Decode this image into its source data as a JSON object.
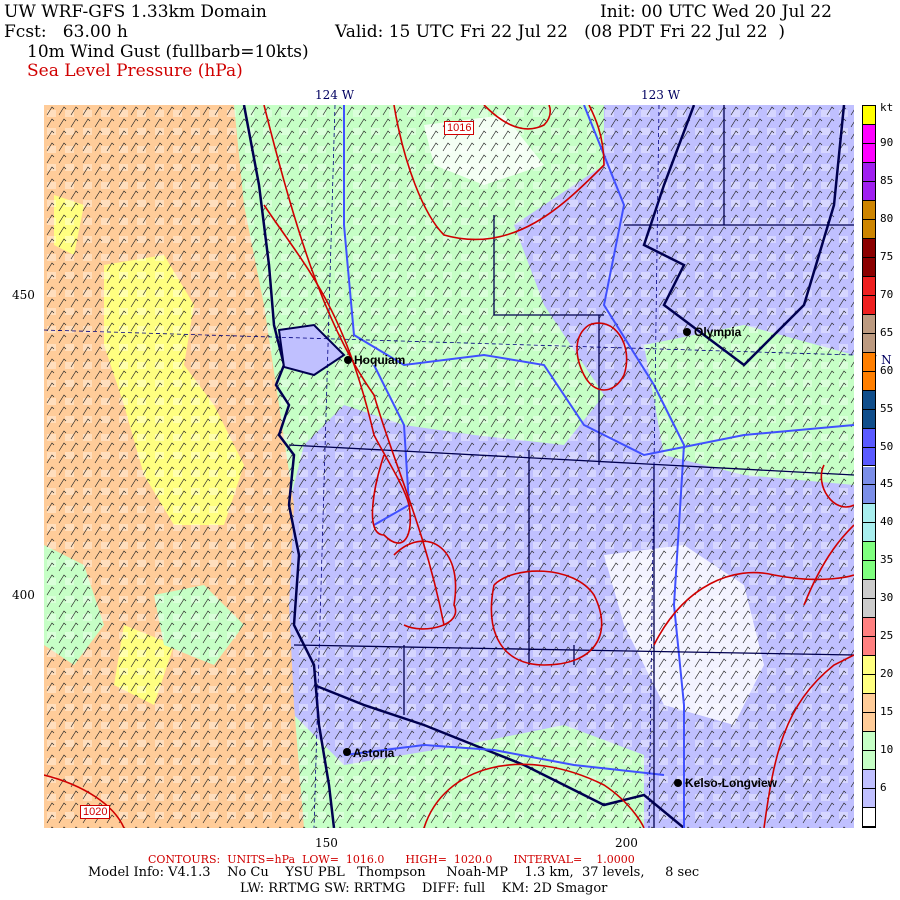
{
  "header": {
    "title": "UW WRF-GFS 1.33km Domain",
    "init": "Init: 00 UTC Wed 20 Jul 22",
    "fcst": "Fcst:   63.00 h",
    "valid": "Valid: 15 UTC Fri 22 Jul 22   (08 PDT Fri 22 Jul 22  )",
    "field1": "10m Wind Gust (fullbarb=10kts)",
    "field2": "Sea Level Pressure (hPa)"
  },
  "axes": {
    "top": [
      "124 W",
      "123 W"
    ],
    "left": [
      "450",
      "400"
    ],
    "bottom": [
      "150",
      "200"
    ],
    "right": [
      "47 N"
    ]
  },
  "contour_labels": [
    "1016",
    "1020"
  ],
  "cities": [
    "Hoquiam",
    "Olympia",
    "Astoria",
    "Kelso-Longview"
  ],
  "colorbar": {
    "unit": "kt",
    "labels": [
      "90",
      "85",
      "80",
      "75",
      "70",
      "65",
      "60",
      "55",
      "50",
      "45",
      "40",
      "35",
      "30",
      "25",
      "20",
      "15",
      "10",
      "6"
    ],
    "colors": [
      "#ffff00",
      "#ff00ff",
      "#a020f0",
      "#cd8500",
      "#8b0000",
      "#ee2020",
      "#bc9a80",
      "#ff7f00",
      "#104e8b",
      "#5a5aff",
      "#7b8ee8",
      "#a8eeee",
      "#7fff7f",
      "#cccccc",
      "#ff8080",
      "#ffff80",
      "#ffcc99",
      "#c6ffc6",
      "#c0c0ff",
      "#ffffff"
    ]
  },
  "footer": {
    "contours": "CONTOURS:  UNITS=hPa  LOW=  1016.0      HIGH=  1020.0      INTERVAL=    1.0000",
    "model": "Model Info: V4.1.3    No Cu    YSU PBL   Thompson     Noah-MP    1.3 km,  37 levels,     8 sec",
    "physics": "LW: RRTMG SW: RRTMG    DIFF: full    KM: 2D Smagor"
  }
}
